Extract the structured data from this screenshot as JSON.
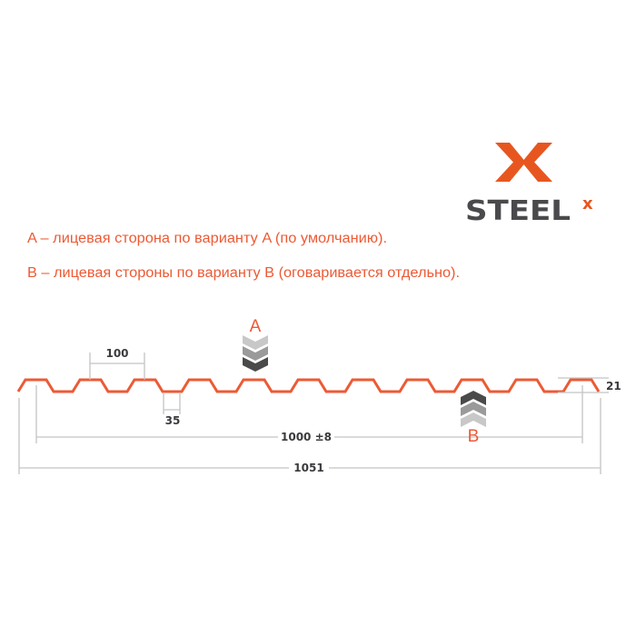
{
  "logo": {
    "text": "STEEL",
    "superscript": "x",
    "brand_color": "#e8561f",
    "text_color": "#4a4a4d"
  },
  "notes": [
    "A – лицевая сторона по варианту A (по умолчанию).",
    "B – лицевая стороны по варианту B (оговаривается отдельно)."
  ],
  "side_labels": {
    "a": "A",
    "b": "B"
  },
  "dimensions": {
    "pitch": "100",
    "trough": "35",
    "effective_width": "1000 ±8",
    "full_width": "1051",
    "height": "21"
  },
  "colors": {
    "profile": "#ec5a35",
    "dimension_lines": "#c4c4c4",
    "chevron_light": "#c8c8c8",
    "chevron_mid": "#9a9a9a",
    "chevron_dark": "#4a4a4a"
  }
}
